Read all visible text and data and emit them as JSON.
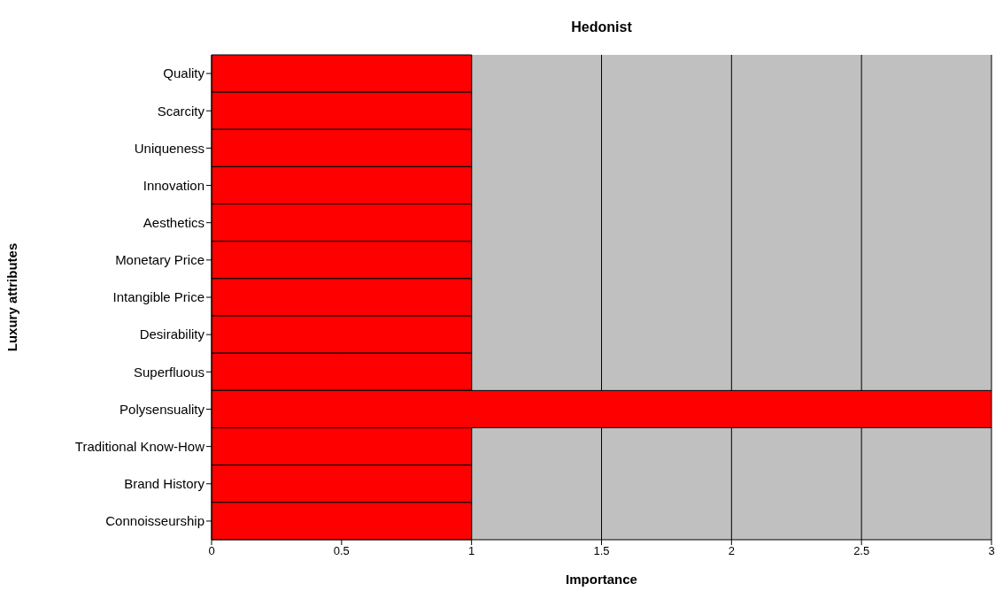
{
  "chart_data": {
    "type": "bar",
    "orientation": "horizontal",
    "title": "Hedonist",
    "xlabel": "Importance",
    "ylabel": "Luxury attributes",
    "categories": [
      "Quality",
      "Scarcity",
      "Uniqueness",
      "Innovation",
      "Aesthetics",
      "Monetary Price",
      "Intangible Price",
      "Desirability",
      "Superfluous",
      "Polysensuality",
      "Traditional Know-How",
      "Brand History",
      "Connoisseurship"
    ],
    "values": [
      1,
      1,
      1,
      1,
      1,
      1,
      1,
      1,
      1,
      3,
      1,
      1,
      1
    ],
    "color": "#ff0000",
    "xlim": [
      0,
      3
    ],
    "xticks": [
      0,
      0.5,
      1,
      1.5,
      2,
      2.5,
      3
    ],
    "grid": "x",
    "legend": false
  }
}
